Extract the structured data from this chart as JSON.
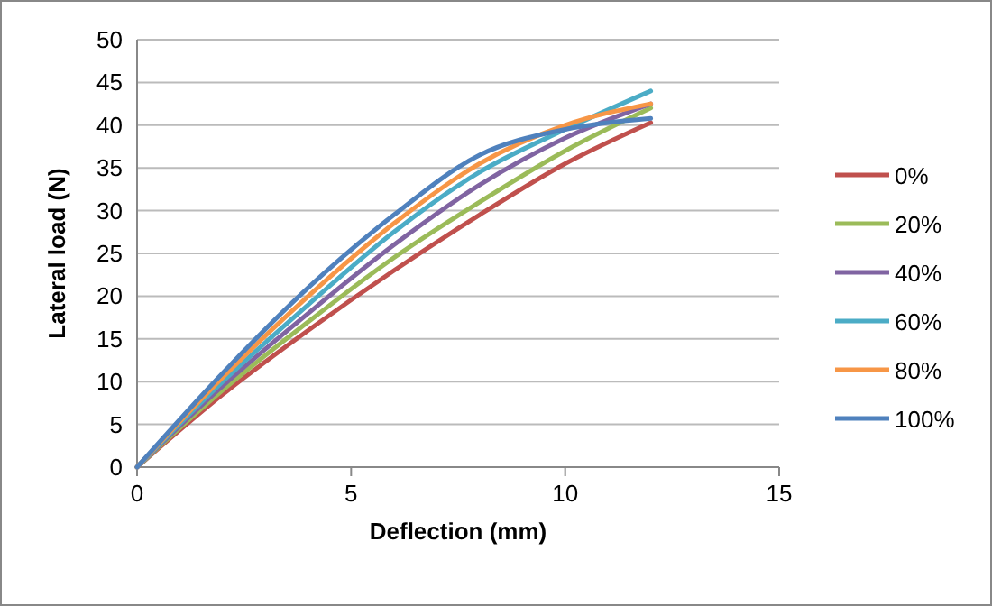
{
  "chart_data": {
    "type": "line",
    "xlabel": "Deflection (mm)",
    "ylabel": "Lateral load (N)",
    "x": [
      0,
      2,
      4,
      6,
      8,
      10,
      12
    ],
    "series": [
      {
        "name": "0%",
        "color": "#c0504d",
        "values": [
          0,
          8.5,
          16,
          23,
          29.5,
          35.5,
          40.3
        ]
      },
      {
        "name": "20%",
        "color": "#9bbb59",
        "values": [
          0,
          9,
          17,
          24.5,
          31,
          37,
          42
        ]
      },
      {
        "name": "40%",
        "color": "#8064a2",
        "values": [
          0,
          9.5,
          18,
          26,
          33,
          38.5,
          42.5
        ]
      },
      {
        "name": "60%",
        "color": "#4bacc6",
        "values": [
          0,
          10,
          19,
          27.5,
          34.5,
          39.5,
          44
        ]
      },
      {
        "name": "80%",
        "color": "#f79646",
        "values": [
          0,
          10.5,
          20,
          28.5,
          35.5,
          40,
          42.5
        ]
      },
      {
        "name": "100%",
        "color": "#4f81bd",
        "values": [
          0,
          11,
          21,
          29.5,
          36.5,
          39.5,
          40.8
        ]
      }
    ],
    "xlim": [
      0,
      15
    ],
    "xticks": [
      0,
      5,
      10,
      15
    ],
    "ylim": [
      0,
      50
    ],
    "yticks": [
      0,
      5,
      10,
      15,
      20,
      25,
      30,
      35,
      40,
      45,
      50
    ],
    "grid": "y",
    "legend": "right",
    "marker": "none",
    "line_style": "solid"
  }
}
